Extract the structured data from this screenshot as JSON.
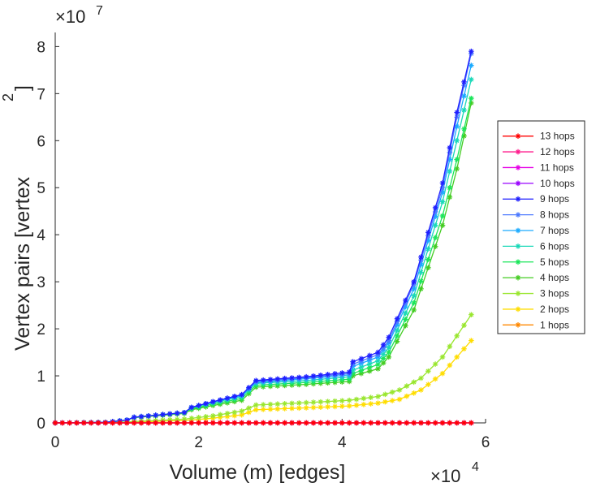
{
  "chart_data": {
    "type": "line",
    "title": "",
    "xlabel": "Volume (m) [edges]",
    "ylabel": "Vertex pairs [vertex",
    "ylabel_sup": "2",
    "ylabel_close": "]",
    "x_exponent_base": "×10",
    "x_exponent_power": "4",
    "y_exponent_base": "×10",
    "y_exponent_power": "7",
    "x_scale": 10000,
    "y_scale": 10000000,
    "xlim": [
      0,
      6
    ],
    "ylim": [
      0,
      8.3
    ],
    "xticks": [
      0,
      2,
      4,
      6
    ],
    "xtick_labels": [
      "0",
      "2",
      "4",
      "6"
    ],
    "yticks": [
      0,
      1,
      2,
      3,
      4,
      5,
      6,
      7,
      8
    ],
    "ytick_labels": [
      "0",
      "1",
      "2",
      "3",
      "4",
      "5",
      "6",
      "7",
      "8"
    ],
    "grid": false,
    "legend_position": "right",
    "legend": [
      "13 hops",
      "12 hops",
      "11 hops",
      "10 hops",
      "9 hops",
      "8 hops",
      "7 hops",
      "6 hops",
      "5 hops",
      "4 hops",
      "3 hops",
      "2 hops",
      "1 hops"
    ],
    "series": [
      {
        "name": "13 hops",
        "color": "#ff0000",
        "points": [
          [
            0,
            0
          ],
          [
            5.8,
            0
          ]
        ]
      },
      {
        "name": "12 hops",
        "color": "#ff1a8c",
        "points": [
          [
            0,
            0
          ],
          [
            5.8,
            0
          ]
        ]
      },
      {
        "name": "11 hops",
        "color": "#e600e6",
        "points": [
          [
            0,
            0
          ],
          [
            5.8,
            0
          ]
        ]
      },
      {
        "name": "10 hops",
        "color": "#9900ff",
        "points": [
          [
            0,
            0
          ],
          [
            5.8,
            0
          ]
        ]
      },
      {
        "name": "9 hops",
        "color": "#1f1fff",
        "points": [
          [
            0,
            0
          ],
          [
            0.7,
            0.01
          ],
          [
            1.0,
            0.06
          ],
          [
            1.1,
            0.12
          ],
          [
            1.8,
            0.22
          ],
          [
            1.9,
            0.33
          ],
          [
            2.2,
            0.45
          ],
          [
            2.6,
            0.6
          ],
          [
            2.8,
            0.9
          ],
          [
            3.5,
            0.98
          ],
          [
            4.1,
            1.08
          ],
          [
            4.15,
            1.3
          ],
          [
            4.5,
            1.5
          ],
          [
            4.65,
            1.82
          ],
          [
            5.0,
            3.0
          ],
          [
            5.4,
            5.1
          ],
          [
            5.6,
            6.6
          ],
          [
            5.8,
            7.9
          ]
        ]
      },
      {
        "name": "8 hops",
        "color": "#4d7aff",
        "points": [
          [
            0,
            0
          ],
          [
            0.7,
            0.01
          ],
          [
            1.0,
            0.06
          ],
          [
            1.1,
            0.12
          ],
          [
            1.8,
            0.22
          ],
          [
            1.9,
            0.33
          ],
          [
            2.2,
            0.45
          ],
          [
            2.6,
            0.6
          ],
          [
            2.8,
            0.88
          ],
          [
            3.5,
            0.96
          ],
          [
            4.1,
            1.05
          ],
          [
            4.15,
            1.25
          ],
          [
            4.5,
            1.45
          ],
          [
            4.65,
            1.75
          ],
          [
            5.0,
            2.95
          ],
          [
            5.4,
            5.0
          ],
          [
            5.6,
            6.5
          ],
          [
            5.8,
            7.85
          ]
        ]
      },
      {
        "name": "7 hops",
        "color": "#1aaaff",
        "points": [
          [
            0,
            0
          ],
          [
            0.7,
            0.01
          ],
          [
            1.0,
            0.06
          ],
          [
            1.1,
            0.12
          ],
          [
            1.8,
            0.22
          ],
          [
            1.9,
            0.33
          ],
          [
            2.2,
            0.44
          ],
          [
            2.6,
            0.58
          ],
          [
            2.8,
            0.86
          ],
          [
            3.5,
            0.94
          ],
          [
            4.1,
            1.02
          ],
          [
            4.15,
            1.2
          ],
          [
            4.5,
            1.4
          ],
          [
            4.65,
            1.7
          ],
          [
            5.0,
            2.85
          ],
          [
            5.4,
            4.9
          ],
          [
            5.6,
            6.3
          ],
          [
            5.8,
            7.6
          ]
        ]
      },
      {
        "name": "6 hops",
        "color": "#1ad9b8",
        "points": [
          [
            0,
            0
          ],
          [
            0.7,
            0.01
          ],
          [
            1.0,
            0.06
          ],
          [
            1.1,
            0.12
          ],
          [
            1.8,
            0.22
          ],
          [
            1.9,
            0.32
          ],
          [
            2.2,
            0.43
          ],
          [
            2.6,
            0.56
          ],
          [
            2.8,
            0.84
          ],
          [
            3.5,
            0.9
          ],
          [
            4.1,
            0.98
          ],
          [
            4.15,
            1.12
          ],
          [
            4.5,
            1.32
          ],
          [
            4.65,
            1.6
          ],
          [
            5.0,
            2.7
          ],
          [
            5.4,
            4.7
          ],
          [
            5.6,
            6.0
          ],
          [
            5.8,
            7.3
          ]
        ]
      },
      {
        "name": "5 hops",
        "color": "#1ae65a",
        "points": [
          [
            0,
            0
          ],
          [
            0.7,
            0.01
          ],
          [
            1.0,
            0.06
          ],
          [
            1.1,
            0.12
          ],
          [
            1.8,
            0.21
          ],
          [
            1.9,
            0.3
          ],
          [
            2.2,
            0.4
          ],
          [
            2.6,
            0.52
          ],
          [
            2.8,
            0.8
          ],
          [
            3.5,
            0.86
          ],
          [
            4.1,
            0.93
          ],
          [
            4.15,
            1.05
          ],
          [
            4.5,
            1.24
          ],
          [
            4.65,
            1.5
          ],
          [
            5.0,
            2.55
          ],
          [
            5.4,
            4.4
          ],
          [
            5.6,
            5.6
          ],
          [
            5.8,
            6.9
          ]
        ]
      },
      {
        "name": "4 hops",
        "color": "#44cc22",
        "points": [
          [
            0,
            0
          ],
          [
            0.7,
            0.01
          ],
          [
            1.0,
            0.06
          ],
          [
            1.1,
            0.11
          ],
          [
            1.8,
            0.2
          ],
          [
            1.9,
            0.28
          ],
          [
            2.2,
            0.37
          ],
          [
            2.6,
            0.48
          ],
          [
            2.8,
            0.76
          ],
          [
            3.5,
            0.82
          ],
          [
            4.1,
            0.88
          ],
          [
            4.15,
            1.0
          ],
          [
            4.5,
            1.15
          ],
          [
            4.65,
            1.4
          ],
          [
            5.0,
            2.4
          ],
          [
            5.4,
            4.2
          ],
          [
            5.6,
            5.4
          ],
          [
            5.8,
            6.8
          ]
        ]
      },
      {
        "name": "3 hops",
        "color": "#99e62e",
        "points": [
          [
            0,
            0
          ],
          [
            1.0,
            0.02
          ],
          [
            1.8,
            0.08
          ],
          [
            2.2,
            0.15
          ],
          [
            2.6,
            0.25
          ],
          [
            2.8,
            0.38
          ],
          [
            3.5,
            0.43
          ],
          [
            4.1,
            0.48
          ],
          [
            4.5,
            0.56
          ],
          [
            4.8,
            0.7
          ],
          [
            5.1,
            0.95
          ],
          [
            5.4,
            1.4
          ],
          [
            5.6,
            1.85
          ],
          [
            5.8,
            2.3
          ]
        ]
      },
      {
        "name": "2 hops",
        "color": "#ffdd00",
        "points": [
          [
            0,
            0
          ],
          [
            1.0,
            0.01
          ],
          [
            1.8,
            0.05
          ],
          [
            2.2,
            0.1
          ],
          [
            2.6,
            0.17
          ],
          [
            2.8,
            0.28
          ],
          [
            3.5,
            0.32
          ],
          [
            4.1,
            0.36
          ],
          [
            4.5,
            0.42
          ],
          [
            4.8,
            0.5
          ],
          [
            5.1,
            0.7
          ],
          [
            5.4,
            1.05
          ],
          [
            5.6,
            1.4
          ],
          [
            5.8,
            1.75
          ]
        ]
      },
      {
        "name": "1 hops",
        "color": "#ff8800",
        "points": [
          [
            0,
            0
          ],
          [
            5.8,
            0
          ]
        ]
      }
    ]
  }
}
